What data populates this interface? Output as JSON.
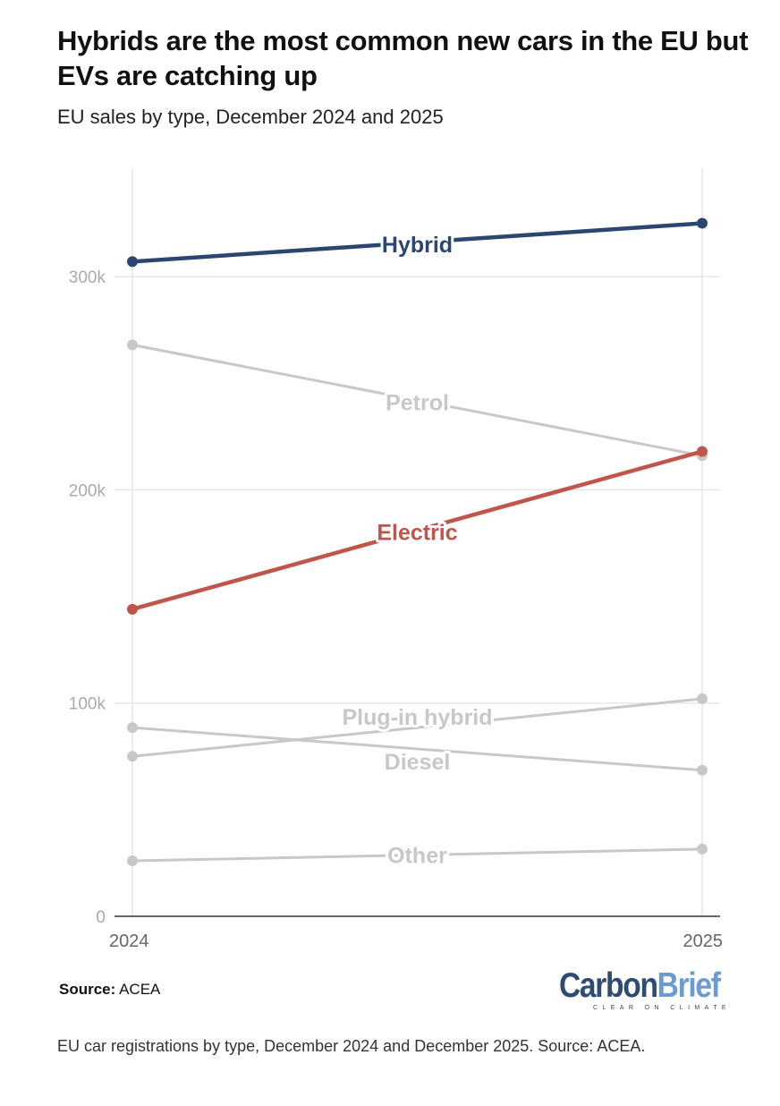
{
  "title": "Hybrids are the most common new cars in the EU but EVs are catching up",
  "subtitle": "EU sales by type, December 2024 and 2025",
  "source_label": "Source:",
  "source_value": "ACEA",
  "logo": {
    "part1": "Carbon",
    "part2": "Brief",
    "tagline": "CLEAR ON CLIMATE"
  },
  "caption": "EU car registrations by type, December 2024 and December 2025. Source: ACEA.",
  "chart_data": {
    "type": "line",
    "title": "Hybrids are the most common new cars in the EU but EVs are catching up",
    "subtitle": "EU sales by type, December 2024 and 2025",
    "xlabel": "",
    "ylabel": "",
    "x": [
      "2024",
      "2025"
    ],
    "ylim": [
      0,
      350000
    ],
    "yticks": [
      0,
      100000,
      200000,
      300000
    ],
    "ytick_labels": [
      "0",
      "100k",
      "200k",
      "300k"
    ],
    "grid": true,
    "series": [
      {
        "name": "Hybrid",
        "values": [
          307000,
          325000
        ],
        "color": "#2b4670"
      },
      {
        "name": "Petrol",
        "values": [
          268000,
          216000
        ],
        "color": "#c8c8c8"
      },
      {
        "name": "Electric",
        "values": [
          144000,
          218000
        ],
        "color": "#c0564a"
      },
      {
        "name": "Plug-in hybrid",
        "values": [
          75000,
          102000
        ],
        "color": "#c8c8c8"
      },
      {
        "name": "Diesel",
        "values": [
          88500,
          68500
        ],
        "color": "#c8c8c8"
      },
      {
        "name": "Other",
        "values": [
          26000,
          31500
        ],
        "color": "#c8c8c8"
      }
    ]
  }
}
